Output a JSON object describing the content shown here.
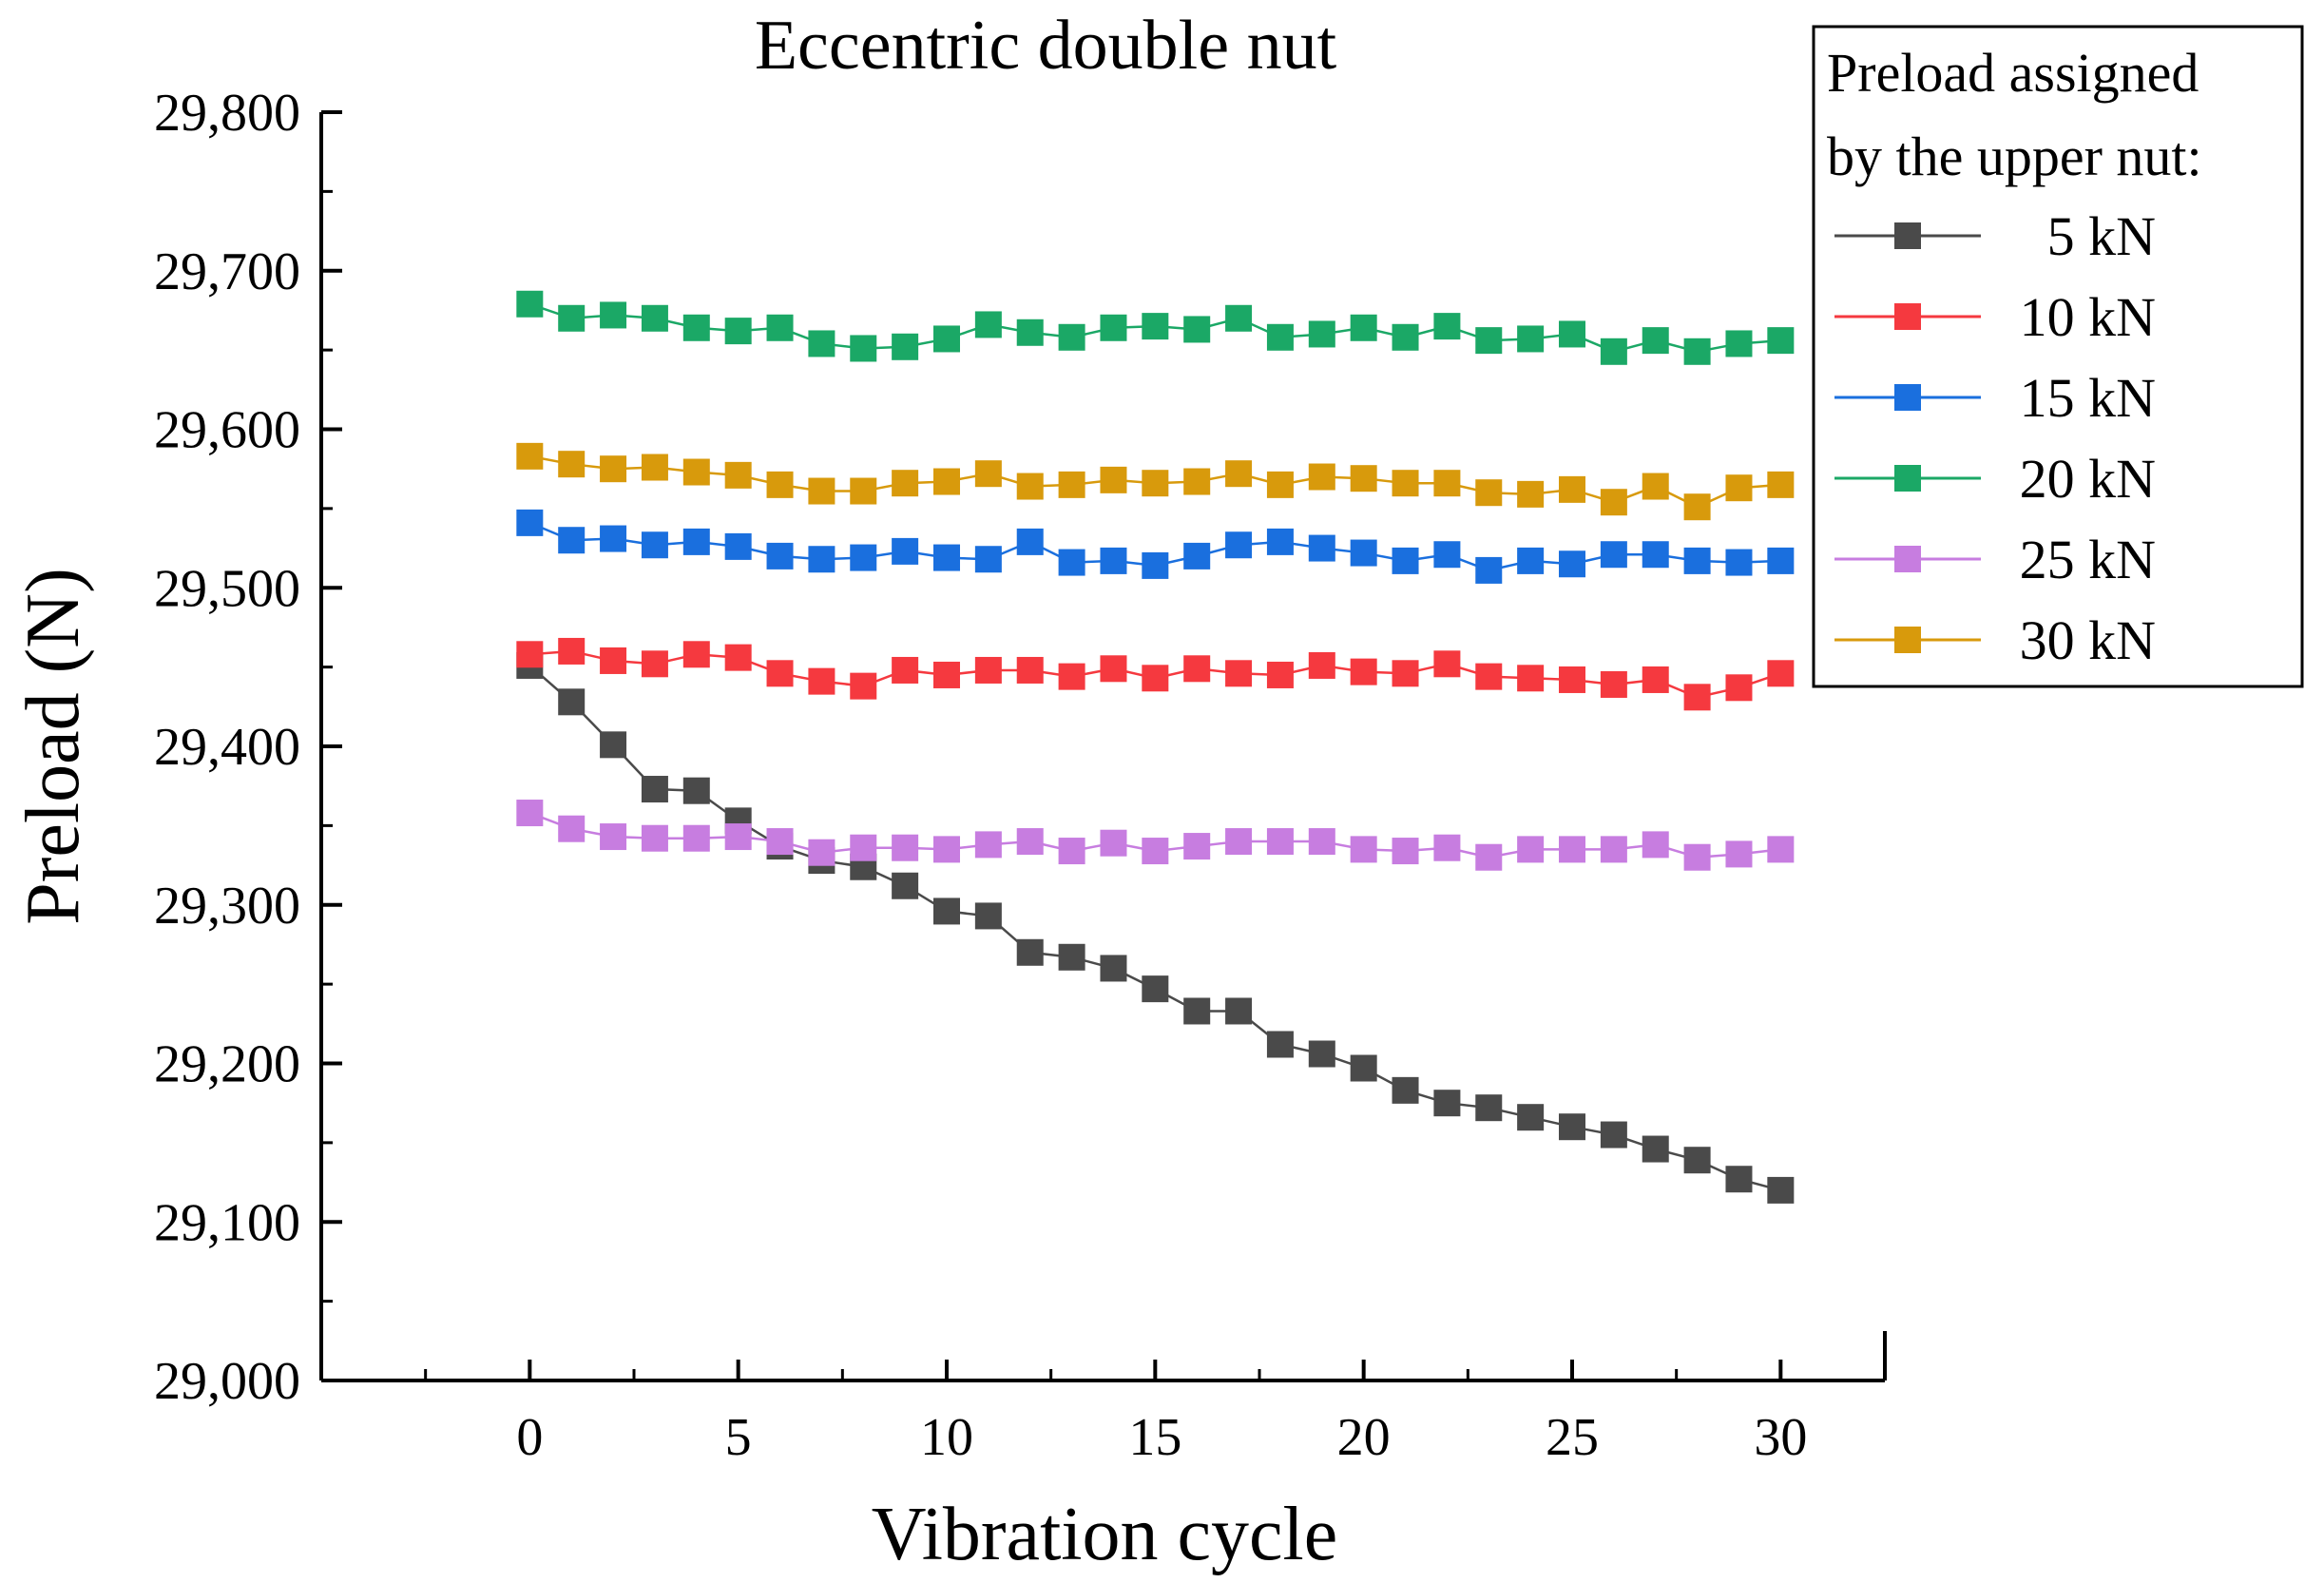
{
  "chart_data": {
    "type": "line",
    "title": "Eccentric double nut",
    "xlabel": "Vibration cycle",
    "ylabel": "Preload (N)",
    "xlim": [
      -5,
      32.5
    ],
    "ylim": [
      29000,
      29800
    ],
    "xticks": [
      0,
      5,
      10,
      15,
      20,
      25,
      30
    ],
    "xtick_labels": [
      "0",
      "5",
      "10",
      "15",
      "20",
      "25",
      "30"
    ],
    "yticks": [
      29000,
      29100,
      29200,
      29300,
      29400,
      29500,
      29600,
      29700,
      29800
    ],
    "ytick_labels": [
      "29,000",
      "29,100",
      "29,200",
      "29,300",
      "29,400",
      "29,500",
      "29,600",
      "29,700",
      "29,800"
    ],
    "grid": false,
    "legend": {
      "title_lines": [
        "Preload assigned",
        "by the upper nut:"
      ],
      "position": "top-right, outside plot"
    },
    "x": [
      0,
      1,
      2,
      3,
      4,
      5,
      6,
      7,
      8,
      9,
      10,
      11,
      12,
      13,
      14,
      15,
      16,
      17,
      18,
      19,
      20,
      21,
      22,
      23,
      24,
      25,
      26,
      27,
      28,
      29,
      30
    ],
    "series": [
      {
        "name": "5 kN",
        "label": "  5 kN",
        "color": "#4a4a4a",
        "values": [
          29451,
          29428,
          29401,
          29373,
          29372,
          29353,
          29337,
          29328,
          29324,
          29312,
          29296,
          29293,
          29270,
          29267,
          29260,
          29247,
          29233,
          29233,
          29212,
          29206,
          29197,
          29183,
          29175,
          29172,
          29166,
          29160,
          29155,
          29146,
          29139,
          29127,
          29120
        ]
      },
      {
        "name": "10 kN",
        "label": "10 kN",
        "color": "#f5393f",
        "values": [
          29458,
          29460,
          29454,
          29452,
          29458,
          29456,
          29446,
          29441,
          29438,
          29448,
          29445,
          29448,
          29448,
          29444,
          29449,
          29443,
          29449,
          29446,
          29445,
          29451,
          29447,
          29446,
          29452,
          29444,
          29443,
          29442,
          29439,
          29442,
          29431,
          29437,
          29446
        ]
      },
      {
        "name": "15 kN",
        "label": "15 kN",
        "color": "#1a6fde",
        "values": [
          29541,
          29530,
          29531,
          29527,
          29529,
          29526,
          29520,
          29518,
          29519,
          29523,
          29519,
          29518,
          29529,
          29516,
          29517,
          29514,
          29520,
          29527,
          29529,
          29525,
          29522,
          29517,
          29521,
          29511,
          29517,
          29515,
          29521,
          29521,
          29517,
          29516,
          29517
        ]
      },
      {
        "name": "20 kN",
        "label": "20 kN",
        "color": "#1ba866",
        "values": [
          29679,
          29670,
          29672,
          29670,
          29664,
          29662,
          29664,
          29654,
          29651,
          29652,
          29657,
          29666,
          29661,
          29658,
          29664,
          29665,
          29663,
          29670,
          29658,
          29660,
          29664,
          29658,
          29665,
          29656,
          29657,
          29660,
          29649,
          29656,
          29649,
          29654,
          29656
        ]
      },
      {
        "name": "25 kN",
        "label": "25 kN",
        "color": "#c77de0",
        "values": [
          29358,
          29348,
          29343,
          29342,
          29342,
          29343,
          29340,
          29333,
          29336,
          29336,
          29335,
          29338,
          29340,
          29334,
          29339,
          29334,
          29337,
          29340,
          29340,
          29340,
          29335,
          29334,
          29336,
          29330,
          29335,
          29335,
          29335,
          29338,
          29330,
          29332,
          29335
        ]
      },
      {
        "name": "30 kN",
        "label": "30 kN",
        "color": "#d89a0c",
        "values": [
          29583,
          29578,
          29575,
          29576,
          29573,
          29571,
          29565,
          29561,
          29561,
          29566,
          29567,
          29572,
          29564,
          29565,
          29568,
          29566,
          29567,
          29572,
          29565,
          29570,
          29569,
          29566,
          29566,
          29560,
          29559,
          29562,
          29554,
          29564,
          29551,
          29563,
          29565
        ]
      }
    ]
  }
}
